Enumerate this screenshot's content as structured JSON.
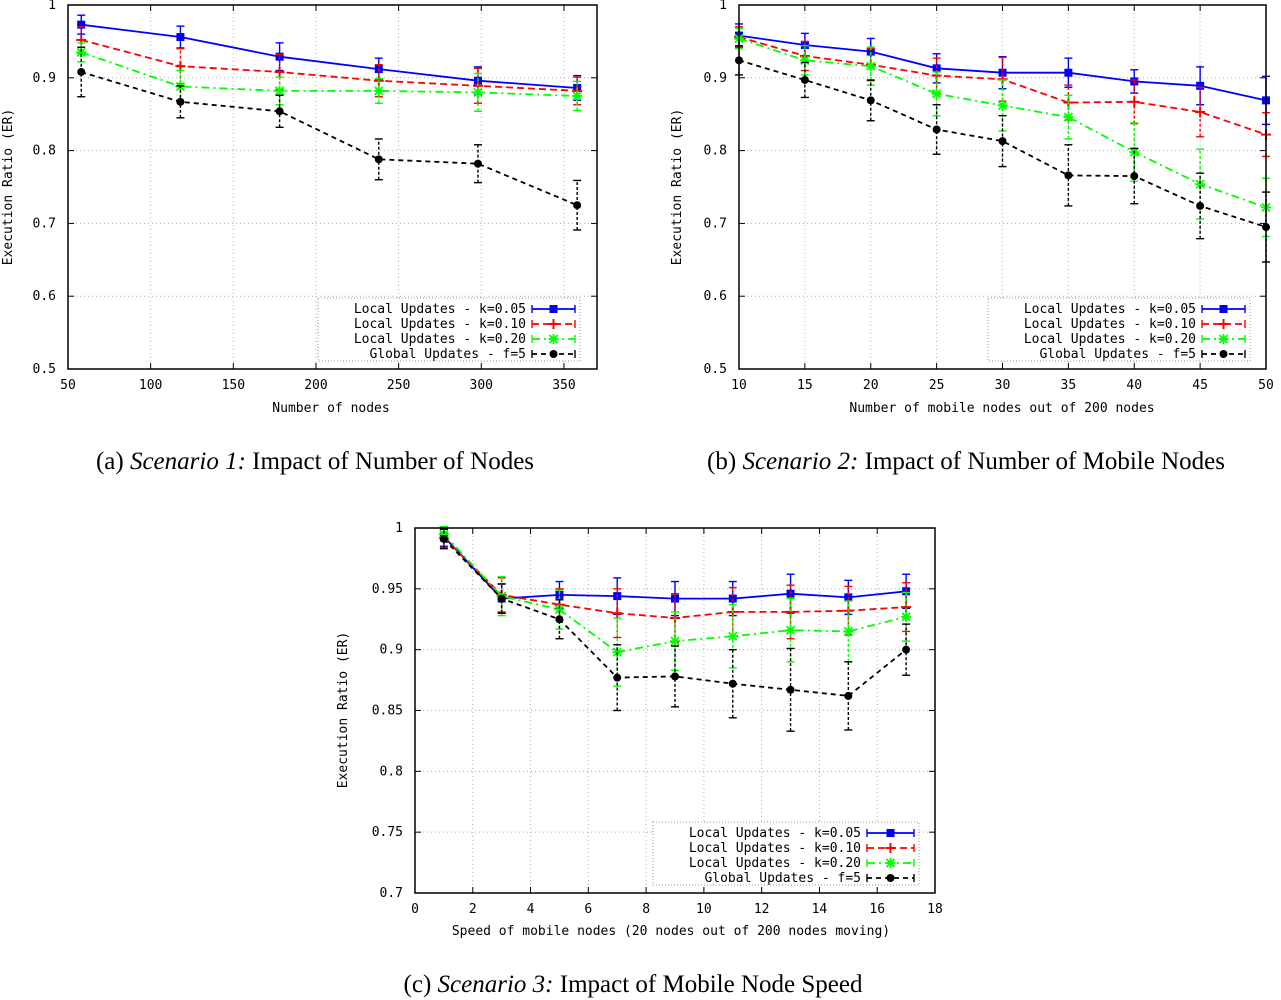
{
  "chart_data": [
    {
      "type": "line",
      "title": "",
      "xlabel": "Number of nodes",
      "ylabel": "Execution Ratio (ER)",
      "xlim": [
        50,
        370
      ],
      "ylim": [
        0.5,
        1
      ],
      "xticks": [
        50,
        100,
        150,
        200,
        250,
        300,
        350
      ],
      "yticks": [
        0.5,
        0.6,
        0.7,
        0.8,
        0.9,
        1
      ],
      "x": [
        58,
        118,
        178,
        238,
        298,
        358
      ],
      "series": [
        {
          "name": "Local Updates - k=0.05",
          "values": [
            0.973,
            0.956,
            0.929,
            0.912,
            0.896,
            0.886
          ],
          "err": [
            0.013,
            0.015,
            0.019,
            0.015,
            0.019,
            0.017
          ]
        },
        {
          "name": "Local Updates - k=0.10",
          "values": [
            0.952,
            0.916,
            0.908,
            0.896,
            0.889,
            0.882
          ],
          "err": [
            0.018,
            0.024,
            0.024,
            0.022,
            0.024,
            0.019
          ]
        },
        {
          "name": "Local Updates - k=0.20",
          "values": [
            0.935,
            0.888,
            0.882,
            0.882,
            0.88,
            0.875
          ],
          "err": [
            0.013,
            0.022,
            0.019,
            0.017,
            0.026,
            0.02
          ]
        },
        {
          "name": "Global Updates - f=5",
          "values": [
            0.908,
            0.867,
            0.854,
            0.788,
            0.782,
            0.725
          ],
          "err": [
            0.034,
            0.022,
            0.022,
            0.028,
            0.026,
            0.034
          ]
        }
      ],
      "legend": "bottom-right",
      "caption_prefix": "(a)",
      "caption_italic": "Scenario 1:",
      "caption_rest": "Impact of Number of Nodes"
    },
    {
      "type": "line",
      "title": "",
      "xlabel": "Number of mobile nodes out of 200 nodes",
      "ylabel": "Execution Ratio (ER)",
      "xlim": [
        10,
        50
      ],
      "ylim": [
        0.5,
        1
      ],
      "xticks": [
        10,
        15,
        20,
        25,
        30,
        35,
        40,
        45,
        50
      ],
      "yticks": [
        0.5,
        0.6,
        0.7,
        0.8,
        0.9,
        1
      ],
      "x": [
        10,
        15,
        20,
        25,
        30,
        35,
        40,
        45,
        50
      ],
      "series": [
        {
          "name": "Local Updates - k=0.05",
          "values": [
            0.958,
            0.945,
            0.936,
            0.913,
            0.907,
            0.907,
            0.895,
            0.889,
            0.869
          ],
          "err": [
            0.016,
            0.016,
            0.018,
            0.02,
            0.022,
            0.02,
            0.016,
            0.026,
            0.033
          ]
        },
        {
          "name": "Local Updates - k=0.10",
          "values": [
            0.956,
            0.93,
            0.918,
            0.903,
            0.898,
            0.866,
            0.867,
            0.853,
            0.822
          ],
          "err": [
            0.014,
            0.02,
            0.022,
            0.024,
            0.03,
            0.024,
            0.03,
            0.034,
            0.03
          ]
        },
        {
          "name": "Local Updates - k=0.20",
          "values": [
            0.954,
            0.924,
            0.916,
            0.878,
            0.862,
            0.846,
            0.798,
            0.754,
            0.722
          ],
          "err": [
            0.014,
            0.02,
            0.026,
            0.03,
            0.035,
            0.03,
            0.04,
            0.048,
            0.04
          ]
        },
        {
          "name": "Global Updates - f=5",
          "values": [
            0.924,
            0.897,
            0.869,
            0.829,
            0.813,
            0.766,
            0.765,
            0.724,
            0.695
          ],
          "err": [
            0.02,
            0.024,
            0.028,
            0.034,
            0.035,
            0.042,
            0.038,
            0.045,
            0.048
          ]
        }
      ],
      "legend": "bottom-right",
      "caption_prefix": "(b)",
      "caption_italic": "Scenario 2:",
      "caption_rest": "Impact of Number of Mobile Nodes"
    },
    {
      "type": "line",
      "title": "",
      "xlabel": "Speed of mobile nodes (20 nodes out of 200 nodes moving)",
      "ylabel": "Execution Ratio (ER)",
      "xlim": [
        0,
        18
      ],
      "ylim": [
        0.7,
        1
      ],
      "xticks": [
        0,
        2,
        4,
        6,
        8,
        10,
        12,
        14,
        16,
        18
      ],
      "yticks": [
        0.7,
        0.75,
        0.8,
        0.85,
        0.9,
        0.95,
        1
      ],
      "x": [
        1,
        3,
        5,
        7,
        9,
        11,
        13,
        15,
        17
      ],
      "series": [
        {
          "name": "Local Updates - k=0.05",
          "values": [
            0.993,
            0.942,
            0.945,
            0.944,
            0.942,
            0.942,
            0.946,
            0.943,
            0.948
          ],
          "err": [
            0.008,
            0.012,
            0.011,
            0.015,
            0.014,
            0.014,
            0.016,
            0.014,
            0.014
          ]
        },
        {
          "name": "Local Updates - k=0.10",
          "values": [
            0.992,
            0.945,
            0.937,
            0.93,
            0.926,
            0.931,
            0.931,
            0.932,
            0.935
          ],
          "err": [
            0.008,
            0.014,
            0.013,
            0.02,
            0.02,
            0.02,
            0.022,
            0.02,
            0.02
          ]
        },
        {
          "name": "Local Updates - k=0.20",
          "values": [
            0.995,
            0.944,
            0.933,
            0.898,
            0.907,
            0.911,
            0.916,
            0.915,
            0.927
          ],
          "err": [
            0.006,
            0.016,
            0.016,
            0.028,
            0.024,
            0.026,
            0.026,
            0.025,
            0.02
          ]
        },
        {
          "name": "Global Updates - f=5",
          "values": [
            0.991,
            0.942,
            0.925,
            0.877,
            0.878,
            0.872,
            0.867,
            0.862,
            0.9
          ],
          "err": [
            0.008,
            0.012,
            0.016,
            0.027,
            0.025,
            0.028,
            0.034,
            0.028,
            0.021
          ]
        }
      ],
      "legend": "bottom-right",
      "caption_prefix": "(c)",
      "caption_italic": "Scenario 3:",
      "caption_rest": "Impact of Mobile Node Speed"
    }
  ],
  "styles": {
    "series_colors": [
      "#0000ff",
      "#ff0000",
      "#00ff00",
      "#000000"
    ],
    "series_markers": [
      "square",
      "plus",
      "star",
      "circle"
    ],
    "series_dashes": [
      "solid",
      "dashed",
      "dashdot",
      "dashed-fine"
    ]
  }
}
